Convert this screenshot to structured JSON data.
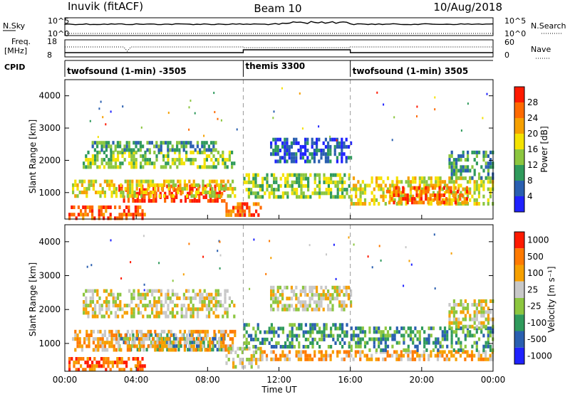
{
  "header": {
    "station": "Inuvik (fitACF)",
    "beam": "Beam 10",
    "date": "10/Aug/2018"
  },
  "top_panels": {
    "nsky_label": "N.Sky",
    "nsky_ticks": [
      "10^5",
      "10^0"
    ],
    "nsearch_label": "N.Search",
    "nsearch_ticks": [
      "10^5",
      "10^0"
    ],
    "freq_label_1": "Freq.",
    "freq_label_2": "[MHz]",
    "freq_ticks": [
      "18",
      "8"
    ],
    "nave_label": "Nave",
    "nave_ticks": [
      "60",
      "0"
    ],
    "cpid_label": "CPID"
  },
  "cpid_segments": [
    {
      "name": "twofsound (1-min) -3505",
      "start": 0,
      "end": 10
    },
    {
      "name": "themis 3300",
      "start": 10,
      "end": 16
    },
    {
      "name": "twofsound (1-min) 3505",
      "start": 16,
      "end": 24
    }
  ],
  "colors": {
    "power_scale": [
      "#1f22ff",
      "#2a5fb0",
      "#2f9a5c",
      "#8cc63f",
      "#f4e200",
      "#f6a000",
      "#ff6a00",
      "#ff1a00"
    ],
    "velocity_scale": [
      "#1f22ff",
      "#2a5fb0",
      "#2f9a5c",
      "#8cc63f",
      "#c8c8c8",
      "#f6a000",
      "#ff7a00",
      "#ff1a00"
    ],
    "ground_scatter": "#bdbdbd"
  },
  "chart_data": [
    {
      "type": "heatmap",
      "name": "power",
      "ylabel": "Slant Range [km]",
      "xlabel": "",
      "x_ticks": [
        "00:00",
        "04:00",
        "08:00",
        "12:00",
        "16:00",
        "20:00",
        "00:00"
      ],
      "y_ticks": [
        "1000",
        "2000",
        "3000",
        "4000"
      ],
      "xlim": [
        0,
        24
      ],
      "ylim": [
        180,
        4500
      ],
      "colorbar_title": "Power [dB]",
      "colorbar_ticks": [
        "4",
        "8",
        "12",
        "16",
        "20",
        "24",
        "28"
      ],
      "regions": [
        {
          "t0": 0.2,
          "t1": 4.5,
          "r0": 250,
          "r1": 600,
          "level": 6
        },
        {
          "t0": 3.0,
          "t1": 9.0,
          "r0": 750,
          "r1": 1250,
          "level": 7
        },
        {
          "t0": 0.4,
          "t1": 9.5,
          "r0": 850,
          "r1": 1400,
          "level": 4
        },
        {
          "t0": 1.0,
          "t1": 9.5,
          "r0": 1800,
          "r1": 2300,
          "level": 3
        },
        {
          "t0": 1.5,
          "t1": 8.5,
          "r0": 2300,
          "r1": 2600,
          "level": 2
        },
        {
          "t0": 9.0,
          "t1": 11.0,
          "r0": 300,
          "r1": 700,
          "level": 6
        },
        {
          "t0": 10.0,
          "t1": 16.0,
          "r0": 900,
          "r1": 1600,
          "level": 3
        },
        {
          "t0": 11.5,
          "t1": 16.0,
          "r0": 2000,
          "r1": 2700,
          "level": 1
        },
        {
          "t0": 16.0,
          "t1": 24.0,
          "r0": 700,
          "r1": 1500,
          "level": 4
        },
        {
          "t0": 18.0,
          "t1": 22.5,
          "r0": 700,
          "r1": 1200,
          "level": 6
        },
        {
          "t0": 21.5,
          "t1": 24.0,
          "r0": 1500,
          "r1": 2300,
          "level": 2
        }
      ]
    },
    {
      "type": "heatmap",
      "name": "velocity",
      "ylabel": "Slant Range [km]",
      "xlabel": "Time UT",
      "x_ticks": [
        "00:00",
        "04:00",
        "08:00",
        "12:00",
        "16:00",
        "20:00",
        "00:00"
      ],
      "y_ticks": [
        "1000",
        "2000",
        "3000",
        "4000"
      ],
      "xlim": [
        0,
        24
      ],
      "ylim": [
        180,
        4500
      ],
      "colorbar_title": "Velocity [m s⁻¹]",
      "colorbar_ticks": [
        "1000",
        "500",
        "100",
        "25",
        "-25",
        "-100",
        "-500",
        "-1000"
      ],
      "regions": [
        {
          "t0": 0.2,
          "t1": 4.5,
          "r0": 250,
          "r1": 600,
          "level": 6
        },
        {
          "t0": 3.0,
          "t1": 9.0,
          "r0": 800,
          "r1": 1300,
          "level": 2
        },
        {
          "t0": 0.4,
          "t1": 9.5,
          "r0": 850,
          "r1": 1400,
          "level": 5
        },
        {
          "t0": 1.0,
          "t1": 9.5,
          "r0": 1750,
          "r1": 2600,
          "level": 4
        },
        {
          "t0": 9.0,
          "t1": 11.0,
          "r0": 300,
          "r1": 900,
          "level": 4
        },
        {
          "t0": 10.0,
          "t1": 16.0,
          "r0": 900,
          "r1": 1600,
          "level": 2
        },
        {
          "t0": 11.5,
          "t1": 16.0,
          "r0": 2000,
          "r1": 2700,
          "level": 4
        },
        {
          "t0": 11.0,
          "t1": 24.0,
          "r0": 500,
          "r1": 800,
          "level": 5
        },
        {
          "t0": 16.0,
          "t1": 24.0,
          "r0": 800,
          "r1": 1500,
          "level": 2
        },
        {
          "t0": 21.5,
          "t1": 24.0,
          "r0": 1500,
          "r1": 2300,
          "level": 4
        }
      ]
    }
  ]
}
